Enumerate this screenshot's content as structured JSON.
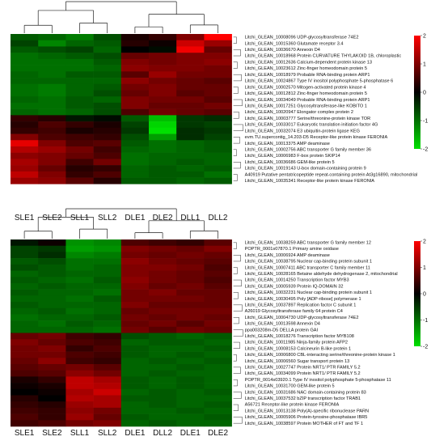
{
  "chart_data": [
    {
      "type": "heatmap",
      "title": "",
      "xlabel": "",
      "ylabel": "",
      "columns": [
        "SLE1",
        "SLE2",
        "SLL1",
        "SLL2",
        "DLE1",
        "DLE2",
        "DLL1",
        "DLL2"
      ],
      "rows": [
        "Litchi_GLEAN_10008096 UDP-glycosyltransferase 74E2",
        "Litchi_GLEAN_10015360 Glutamate receptor 3.4",
        "Litchi_GLEAN_10036670 Annexin D4",
        "Litchi_GLEAN_10018968 Protein CURVATURE THYLAKOID 1B, chloroplastic",
        "Litchi_GLEAN_10012636 Calcium-dependent protein kinase 13",
        "Litchi_GLEAN_10023612 Zinc-finger homeodomain protein 5",
        "Litchi_GLEAN_10018979 Probable RNA-binding protein ARP1",
        "Litchi_GLEAN_10024867 Type IV inositol polyphosphate 5-phosphatase 6",
        "Litchi_GLEAN_10002570 Mitogen-activated protein kinase 4",
        "Litchi_GLEAN_10012812 Zinc-finger homeodomain protein 5",
        "Litchi_GLEAN_10034049 Probable RNA-binding protein ARP1",
        "Litchi_GLEAN_10017251 Glycosyltransferase-like KOBITO 1",
        "Litchi_GLEAN_10020947 Elongator complex protein 2",
        "Litchi_GLEAN_10003777 Serine/threonine-protein kinase TOR",
        "Litchi_GLEAN_10033017 Eukaryotic translation initiation factor 4G",
        "Litchi_GLEAN_10032074 E3 ubiquitin-protein ligase KEG",
        "evm.TU.supercontig_14.203-D5 Receptor-like protein kinase FERONIA",
        "Litchi_GLEAN_10013375 AMP deaminase",
        "Litchi_GLEAN_10002756 ABC transporter G family member 36",
        "Litchi_GLEAN_10006983 F-box protein SKIP14",
        "Litchi_GLEAN_10036686 GEM-like protein 5",
        "Litchi_GLEAN_10019143 U-box domain-containing protein 9",
        "A40919 Putative pentatricopeptide repeat-containing protein At3g16890, mitochondrial",
        "Litchi_GLEAN_10035341 Receptor-like protein kinase FERONIA"
      ],
      "values": [
        [
          -0.8,
          -0.9,
          -1.1,
          -0.7,
          0.2,
          0.4,
          1.0,
          2.0
        ],
        [
          -0.6,
          -1.2,
          -0.9,
          -0.8,
          0.3,
          0.1,
          1.6,
          1.2
        ],
        [
          -0.8,
          -0.7,
          -0.6,
          -0.9,
          0.0,
          -0.1,
          1.9,
          0.8
        ],
        [
          -1.0,
          -0.9,
          -0.8,
          -0.7,
          0.8,
          0.9,
          1.0,
          1.0
        ],
        [
          -1.0,
          -1.0,
          -1.0,
          -0.8,
          1.0,
          0.9,
          1.0,
          1.1
        ],
        [
          -1.0,
          -1.0,
          -1.0,
          -0.9,
          1.1,
          1.0,
          1.0,
          0.9
        ],
        [
          -0.9,
          -1.0,
          -0.8,
          -0.8,
          0.7,
          1.2,
          0.9,
          0.9
        ],
        [
          -0.9,
          -0.9,
          -0.9,
          -0.9,
          1.1,
          0.9,
          0.8,
          0.7
        ],
        [
          -1.0,
          -1.1,
          -0.9,
          -0.8,
          0.9,
          1.0,
          0.8,
          0.8
        ],
        [
          -1.0,
          -1.1,
          -0.9,
          -0.7,
          0.8,
          1.0,
          0.7,
          0.8
        ],
        [
          -0.9,
          -1.0,
          -0.8,
          -0.9,
          1.0,
          0.9,
          0.9,
          0.7
        ],
        [
          -1.0,
          -1.0,
          -0.8,
          -0.7,
          1.0,
          0.8,
          0.8,
          0.9
        ],
        [
          -0.9,
          -1.0,
          -0.9,
          -0.7,
          0.6,
          0.9,
          0.8,
          0.7
        ],
        [
          0.4,
          0.3,
          -0.2,
          -0.1,
          -0.8,
          -1.7,
          -0.5,
          -0.4
        ],
        [
          0.3,
          0.6,
          0.4,
          0.2,
          -0.6,
          -1.9,
          -0.5,
          -0.6
        ],
        [
          0.4,
          0.5,
          0.2,
          0.3,
          -0.5,
          -2.0,
          -0.4,
          -0.5
        ],
        [
          1.0,
          0.6,
          0.5,
          0.4,
          -0.7,
          -1.4,
          -0.4,
          -0.6
        ],
        [
          1.8,
          1.0,
          0.6,
          0.7,
          -0.8,
          -1.0,
          -0.9,
          -0.8
        ],
        [
          1.4,
          1.2,
          0.9,
          0.5,
          -0.9,
          -1.0,
          -0.9,
          -0.8
        ],
        [
          1.1,
          1.0,
          0.8,
          0.6,
          -1.0,
          -0.9,
          -0.9,
          -0.9
        ],
        [
          1.3,
          1.0,
          0.5,
          0.9,
          -1.0,
          -0.9,
          -0.8,
          -0.9
        ],
        [
          1.2,
          0.8,
          0.3,
          0.4,
          -0.9,
          -0.8,
          -0.9,
          -0.8
        ],
        [
          1.5,
          1.0,
          0.4,
          0.6,
          -0.9,
          -0.8,
          -0.8,
          -1.0
        ],
        [
          1.2,
          1.1,
          0.7,
          0.3,
          -0.8,
          -0.8,
          -0.9,
          -0.8
        ]
      ],
      "scale": {
        "min": -2,
        "max": 2,
        "ticks": [
          2,
          1,
          0,
          -1,
          -2
        ]
      },
      "colors": {
        "low": "#00e000",
        "mid": "#000000",
        "high": "#ff0000"
      }
    },
    {
      "type": "heatmap",
      "title": "",
      "xlabel": "",
      "ylabel": "",
      "columns": [
        "SLE1",
        "SLE2",
        "SLL1",
        "SLL2",
        "DLE1",
        "DLL2",
        "DLE1",
        "DLE2"
      ],
      "rows": [
        "Litchi_GLEAN_10038259 ABC transporter G family member 12",
        "POPTR_0001s07870.1 Primary amine oxidase",
        "Litchi_GLEAN_10006924 AMP deaminase",
        "Litchi_GLEAN_10038795 Nuclear cap-binding protein subunit 1",
        "Litchi_GLEAN_10007411 ABC transporter C family member 11",
        "Litchi_GLEAN_10028165 Betaine aldehyde dehydrogenase 2, mitochondrial",
        "Litchi_GLEAN_10014250 Transcription factor MYB3",
        "Litchi_GLEAN_10005939 Protein IQ-DOMAIN 32",
        "Litchi_GLEAN_10032231 Nuclear cap-binding protein subunit 1",
        "Litchi_GLEAN_10030495 Poly [ADP-ribose] polymerase 1",
        "Litchi_GLEAN_10037897 Replication factor C subunit 1",
        "A26019 Glycosyltransferase family 64 protein C4",
        "Litchi_GLEAN_10004730 UDP-glycosyltransferase 74E2",
        "Litchi_GLEAN_10013598 Annexin D4",
        "ppa003208m-D5 DELLA protein GAI",
        "Litchi_GLEAN_10018276 Transcription factor MYB108",
        "Litchi_GLEAN_10011985 Ninja-family protein AFP2",
        "Litchi_GLEAN_10008153 Calcineurin B-like protein 1",
        "Litchi_GLEAN_10006800 CBL-interacting serine/threonine-protein kinase 1",
        "Litchi_GLEAN_10006560 Sugar transport protein 13",
        "Litchi_GLEAN_10027747 Protein NRT1/ PTR FAMILY 5.2",
        "Litchi_GLEAN_10034099 Protein NRT1/ PTR FAMILY 5.2",
        "POPTR_0014s03920.1 Type IV inositol polyphosphate 5-phosphatase 11",
        "Litchi_GLEAN_10031700 GEM-like protein 5",
        "Litchi_GLEAN_10031686 NAC domain-containing protein 83",
        "Litchi_GLEAN_10037532 bZIP transcription factor TRAB1",
        "A56721 Receptor-like protein kinase FERONIA",
        "Litchi_GLEAN_10013138 Poly(A)-specific ribonuclease PARN",
        "Litchi_GLEAN_10005906 Protein-tyrosine-phosphatase IBR5",
        "Litchi_GLEAN_10038597 Protein MOTHER of FT and TF 1"
      ],
      "values": [
        [
          -0.2,
          0.1,
          -1.3,
          -1.2,
          0.6,
          0.5,
          0.4,
          0.7
        ],
        [
          -0.6,
          -0.5,
          -1.4,
          -1.3,
          1.0,
          0.9,
          0.8,
          1.0
        ],
        [
          -0.6,
          -0.4,
          -1.2,
          -1.1,
          0.9,
          0.8,
          0.9,
          0.8
        ],
        [
          -0.8,
          -0.7,
          -1.0,
          -1.0,
          1.1,
          0.9,
          0.8,
          0.7
        ],
        [
          -0.7,
          -0.8,
          -1.0,
          -0.9,
          1.0,
          1.0,
          0.9,
          0.6
        ],
        [
          -0.9,
          -0.8,
          -0.9,
          -0.9,
          1.0,
          0.9,
          0.8,
          0.7
        ],
        [
          -0.8,
          -0.9,
          -1.0,
          -0.8,
          1.1,
          0.9,
          0.8,
          0.6
        ],
        [
          -0.9,
          -0.8,
          -0.9,
          -0.9,
          1.0,
          0.8,
          0.9,
          0.7
        ],
        [
          -0.8,
          -0.9,
          -0.9,
          -1.0,
          0.9,
          1.0,
          0.8,
          0.8
        ],
        [
          -0.9,
          -0.9,
          -1.0,
          -0.8,
          0.9,
          0.9,
          0.9,
          0.8
        ],
        [
          -0.8,
          -0.9,
          -0.9,
          -0.9,
          1.0,
          0.8,
          0.8,
          0.8
        ],
        [
          -0.9,
          -0.8,
          -1.0,
          -0.9,
          0.8,
          0.9,
          0.9,
          0.9
        ],
        [
          -1.0,
          -0.9,
          -0.9,
          -0.8,
          0.9,
          0.8,
          0.9,
          0.8
        ],
        [
          -0.9,
          -1.0,
          -0.8,
          -0.9,
          0.8,
          0.9,
          0.7,
          0.9
        ],
        [
          -0.9,
          -0.9,
          -0.9,
          -1.0,
          0.9,
          0.7,
          0.9,
          0.8
        ],
        [
          0.8,
          0.9,
          0.5,
          0.4,
          -0.7,
          -0.8,
          -0.9,
          -0.8
        ],
        [
          1.0,
          0.8,
          0.6,
          0.5,
          -0.9,
          -0.8,
          -0.8,
          -0.9
        ],
        [
          0.9,
          1.0,
          0.4,
          0.6,
          -0.8,
          -0.9,
          -0.9,
          -0.8
        ],
        [
          0.9,
          0.9,
          0.6,
          0.5,
          -0.8,
          -0.9,
          -0.8,
          -0.9
        ],
        [
          0.8,
          1.1,
          0.5,
          0.4,
          -0.9,
          -0.8,
          -0.9,
          -0.8
        ],
        [
          0.7,
          0.8,
          0.9,
          0.7,
          -0.9,
          -0.9,
          -0.8,
          -0.9
        ],
        [
          0.6,
          0.7,
          1.1,
          0.9,
          -0.9,
          -0.8,
          -0.9,
          -0.9
        ],
        [
          0.2,
          0.4,
          1.5,
          1.3,
          -0.8,
          -0.9,
          -0.8,
          -0.9
        ],
        [
          0.1,
          0.2,
          1.5,
          1.4,
          -0.8,
          -0.9,
          -0.8,
          -0.9
        ],
        [
          0.0,
          0.1,
          1.3,
          1.6,
          -0.9,
          -0.8,
          -0.9,
          -0.8
        ],
        [
          0.3,
          0.0,
          1.4,
          1.3,
          -0.8,
          -0.8,
          -0.9,
          -0.9
        ],
        [
          0.4,
          0.3,
          1.2,
          1.3,
          -0.9,
          -0.8,
          -0.9,
          -0.8
        ],
        [
          0.5,
          0.4,
          1.1,
          0.9,
          -0.9,
          -0.9,
          -0.8,
          -0.9
        ],
        [
          0.6,
          0.4,
          1.2,
          0.8,
          -0.8,
          -0.9,
          -0.9,
          -0.8
        ],
        [
          0.5,
          0.6,
          0.9,
          1.0,
          -0.9,
          -0.8,
          -0.9,
          -0.9
        ]
      ],
      "scale": {
        "min": -2,
        "max": 2,
        "ticks": [
          2,
          1,
          0,
          -1,
          -2
        ]
      },
      "colors": {
        "low": "#00e000",
        "mid": "#000000",
        "high": "#ff0000"
      }
    }
  ]
}
